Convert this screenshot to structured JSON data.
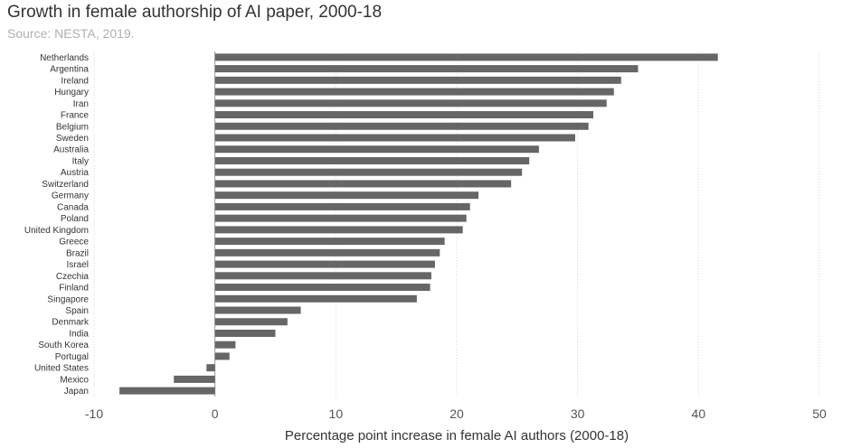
{
  "chart_data": {
    "type": "bar",
    "orientation": "horizontal",
    "title": "Growth in female authorship of AI paper, 2000-18",
    "subtitle": "Source: NESTA, 2019.",
    "xlabel": "Percentage point increase in female AI authors (2000-18)",
    "ylabel": "",
    "xlim": [
      -10,
      50
    ],
    "xticks": [
      -10,
      0,
      10,
      20,
      30,
      40,
      50
    ],
    "grid": true,
    "bar_color": "#666666",
    "categories": [
      "Netherlands",
      "Argentina",
      "Ireland",
      "Hungary",
      "Iran",
      "France",
      "Belgium",
      "Sweden",
      "Australia",
      "Italy",
      "Austria",
      "Switzerland",
      "Germany",
      "Canada",
      "Poland",
      "United Kingdom",
      "Greece",
      "Brazil",
      "Israel",
      "Czechia",
      "Finland",
      "Singapore",
      "Spain",
      "Denmark",
      "India",
      "South Korea",
      "Portugal",
      "United States",
      "Mexico",
      "Japan"
    ],
    "values": [
      41.6,
      35.0,
      33.6,
      33.0,
      32.4,
      31.3,
      30.9,
      29.8,
      26.8,
      26.0,
      25.4,
      24.5,
      21.8,
      21.1,
      20.8,
      20.5,
      19.0,
      18.6,
      18.2,
      17.9,
      17.8,
      16.7,
      7.1,
      6.0,
      5.0,
      1.7,
      1.2,
      -0.7,
      -3.4,
      -7.9
    ]
  }
}
